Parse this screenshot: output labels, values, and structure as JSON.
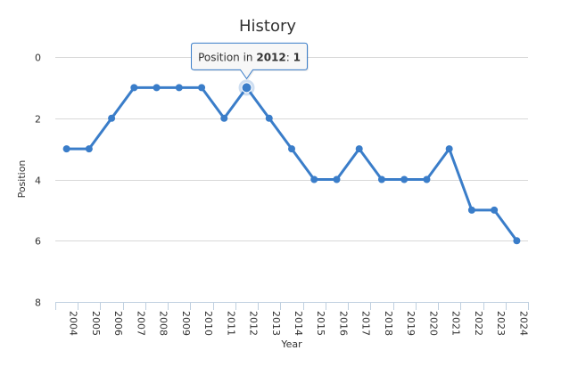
{
  "chart_data": {
    "type": "line",
    "title": "History",
    "xlabel": "Year",
    "ylabel": "Position",
    "categories": [
      "2004",
      "2005",
      "2006",
      "2007",
      "2008",
      "2009",
      "2010",
      "2011",
      "2012",
      "2013",
      "2014",
      "2015",
      "2016",
      "2017",
      "2018",
      "2019",
      "2020",
      "2021",
      "2022",
      "2023",
      "2024"
    ],
    "series": [
      {
        "values": [
          3,
          3,
          2,
          1,
          1,
          1,
          1,
          2,
          1,
          2,
          3,
          4,
          4,
          3,
          4,
          4,
          4,
          3,
          5,
          5,
          6
        ]
      }
    ],
    "ylim": [
      0,
      8
    ],
    "yticks": [
      "0",
      "2",
      "4",
      "6",
      "8"
    ],
    "y_reversed": true,
    "grid": true,
    "line_color": "#3a7dc9",
    "tooltip": {
      "prefix": "Position in ",
      "category": "2012",
      "separator": ": ",
      "value": "1"
    }
  }
}
